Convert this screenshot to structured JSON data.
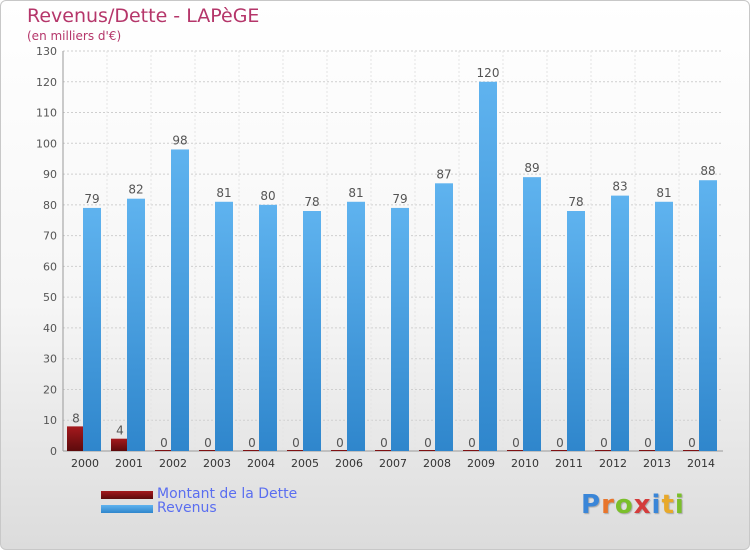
{
  "title": "Revenus/Dette - LAPèGE",
  "subtitle": "(en milliers d'€)",
  "logo_text": "Proxiti",
  "chart_data": {
    "type": "bar",
    "categories": [
      "2000",
      "2001",
      "2002",
      "2003",
      "2004",
      "2005",
      "2006",
      "2007",
      "2008",
      "2009",
      "2010",
      "2011",
      "2012",
      "2013",
      "2014"
    ],
    "series": [
      {
        "name": "Montant de la Dette",
        "values": [
          8,
          4,
          0,
          0,
          0,
          0,
          0,
          0,
          0,
          0,
          0,
          0,
          0,
          0,
          0
        ],
        "color": "#7a0f12"
      },
      {
        "name": "Revenus",
        "values": [
          79,
          82,
          98,
          81,
          80,
          78,
          81,
          79,
          87,
          120,
          89,
          78,
          83,
          81,
          88
        ],
        "color": "#4aa3e6"
      }
    ],
    "ylim": [
      0,
      130
    ],
    "yticks": [
      0,
      10,
      20,
      30,
      40,
      50,
      60,
      70,
      80,
      90,
      100,
      110,
      120,
      130
    ],
    "grid": true,
    "legend_position": "bottom-left"
  }
}
